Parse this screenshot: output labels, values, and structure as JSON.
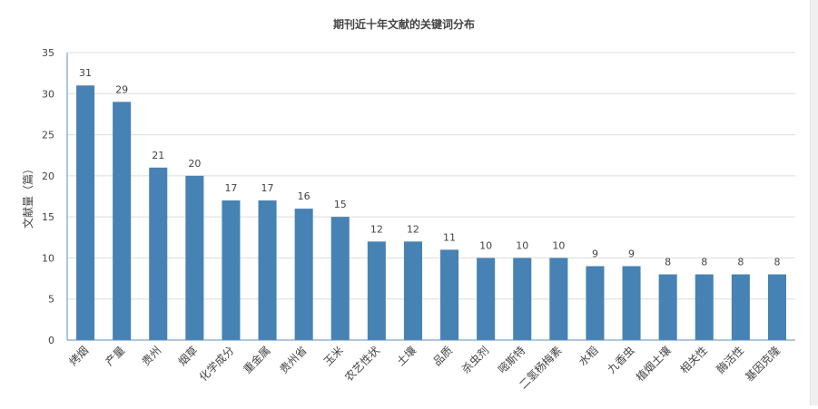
{
  "chart_data": {
    "type": "bar",
    "title": "期刊近十年文献的关键词分布",
    "xlabel": "",
    "ylabel": "文献量（篇）",
    "ylim": [
      0,
      35
    ],
    "yticks": [
      0,
      5,
      10,
      15,
      20,
      25,
      30,
      35
    ],
    "grid": true,
    "legend": "none",
    "bar_color": "#4682b4",
    "categories": [
      "烤烟",
      "产量",
      "贵州",
      "烟草",
      "化学成分",
      "重金属",
      "贵州省",
      "玉米",
      "农艺性状",
      "土壤",
      "品质",
      "杀虫剂",
      "嘧斯特",
      "二氢杨梅素",
      "水稻",
      "九香虫",
      "植烟土壤",
      "相关性",
      "酶活性",
      "基因克隆"
    ],
    "values": [
      31,
      29,
      21,
      20,
      17,
      17,
      16,
      15,
      12,
      12,
      11,
      10,
      10,
      10,
      9,
      9,
      8,
      8,
      8,
      8
    ]
  }
}
